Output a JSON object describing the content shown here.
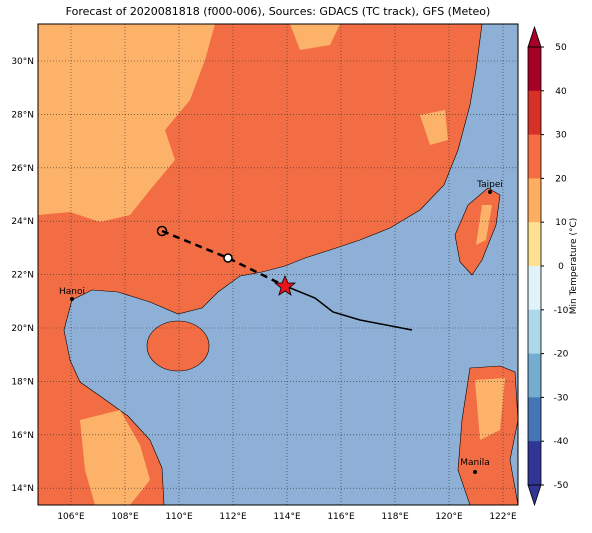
{
  "title": "Forecast of 2020081818 (f000-006), Sources: GDACS (TC track), GFS (Meteo)",
  "lat_labels": [
    "30°N",
    "28°N",
    "26°N",
    "24°N",
    "22°N",
    "20°N",
    "18°N",
    "16°N",
    "14°N"
  ],
  "lon_labels": [
    "106°E",
    "108°E",
    "110°E",
    "112°E",
    "114°E",
    "116°E",
    "118°E",
    "120°E",
    "122°E"
  ],
  "cities": [
    "Hanoi",
    "Taipei",
    "Manila"
  ],
  "colorbar": {
    "label": "Min Temperature (°C)",
    "ticks": [
      50,
      40,
      30,
      20,
      10,
      0,
      -10,
      -20,
      -30,
      -40,
      -50
    ],
    "colors": [
      "#a50026",
      "#d73027",
      "#f46d43",
      "#fdae61",
      "#fee090",
      "#e0f3f8",
      "#abd9e9",
      "#74add1",
      "#4575b4",
      "#313695"
    ]
  }
}
